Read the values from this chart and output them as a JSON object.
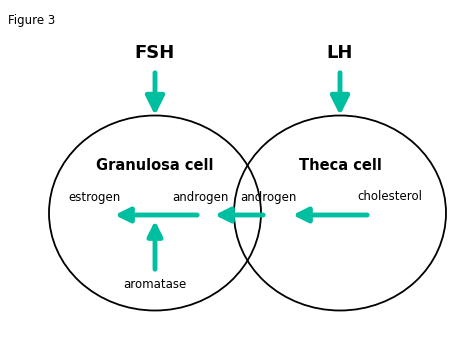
{
  "figure_label": "Figure 3",
  "background_color": "#ffffff",
  "ac": "#00BFA0",
  "cell1_label": "Granulosa cell",
  "cell2_label": "Theca cell",
  "hormone1": "FSH",
  "hormone2": "LH",
  "label_estrogen": "estrogen",
  "label_androgen_left": "androgen",
  "label_androgen_right": "androgen",
  "label_cholesterol": "cholesterol",
  "label_aromatase": "aromatase",
  "c1x": 0.27,
  "c1y": 0.5,
  "c2x": 0.7,
  "c2y": 0.5,
  "ew": 0.5,
  "eh": 0.6
}
